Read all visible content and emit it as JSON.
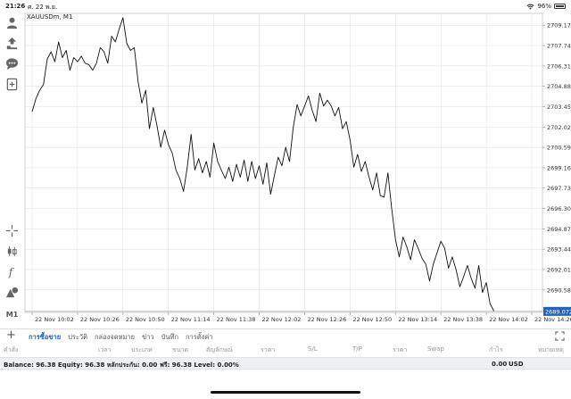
{
  "status_bar": {
    "time": "21:26",
    "date": "ศ. 22 พ.ย.",
    "battery": "96%"
  },
  "toolbar": {
    "tools": [
      "person-icon",
      "trade-icon",
      "chat-icon",
      "add-chart-icon",
      "crosshair-icon",
      "candlestick-icon",
      "indicator-icon",
      "objects-icon",
      "timeframe-label"
    ],
    "timeframe": "M1"
  },
  "chart": {
    "symbol": "XAUUSDm, M1",
    "line_color": "#111111",
    "grid_color": "#dddddd",
    "current_price": "2689.072",
    "current_price_bg": "#2563b8",
    "price_labels": [
      "2709.170",
      "2707.740",
      "2706.310",
      "2704.880",
      "2703.450",
      "2702.020",
      "2700.590",
      "2699.160",
      "2697.730",
      "2696.300",
      "2694.870",
      "2693.440",
      "2692.010",
      "2690.580"
    ],
    "time_labels": [
      "22 Nov 10:02",
      "22 Nov 10:26",
      "22 Nov 10:50",
      "22 Nov 11:14",
      "22 Nov 11:38",
      "22 Nov 12:02",
      "22 Nov 12:26",
      "22 Nov 12:50",
      "22 Nov 13:14",
      "22 Nov 13:38",
      "22 Nov 14:02",
      "22 Nov 14:26"
    ]
  },
  "chart_data": {
    "type": "line",
    "title": "XAUUSDm, M1",
    "xlabel": "",
    "ylabel": "",
    "ylim": [
      2689.0,
      2710.0
    ],
    "x": [
      "10:02",
      "10:04",
      "10:06",
      "10:08",
      "10:10",
      "10:12",
      "10:14",
      "10:16",
      "10:18",
      "10:20",
      "10:22",
      "10:24",
      "10:26",
      "10:28",
      "10:30",
      "10:32",
      "10:34",
      "10:36",
      "10:38",
      "10:40",
      "10:42",
      "10:44",
      "10:46",
      "10:48",
      "10:50",
      "10:52",
      "10:54",
      "10:56",
      "10:58",
      "11:00",
      "11:02",
      "11:04",
      "11:06",
      "11:08",
      "11:10",
      "11:12",
      "11:14",
      "11:16",
      "11:18",
      "11:20",
      "11:22",
      "11:24",
      "11:26",
      "11:28",
      "11:30",
      "11:32",
      "11:34",
      "11:36",
      "11:38",
      "11:40",
      "11:42",
      "11:44",
      "11:46",
      "11:48",
      "11:50",
      "11:52",
      "11:54",
      "11:56",
      "11:58",
      "12:00",
      "12:02",
      "12:04",
      "12:06",
      "12:08",
      "12:10",
      "12:12",
      "12:14",
      "12:16",
      "12:18",
      "12:20",
      "12:22",
      "12:24",
      "12:26",
      "12:28",
      "12:30",
      "12:32",
      "12:34",
      "12:36",
      "12:38",
      "12:40",
      "12:42",
      "12:44",
      "12:46",
      "12:48",
      "12:50",
      "12:52",
      "12:54",
      "12:56",
      "12:58",
      "13:00",
      "13:02",
      "13:04",
      "13:06",
      "13:08",
      "13:10",
      "13:12",
      "13:14",
      "13:16",
      "13:18",
      "13:20",
      "13:22",
      "13:24",
      "13:26",
      "13:28",
      "13:30",
      "13:32",
      "13:34",
      "13:36",
      "13:38",
      "13:40",
      "13:42",
      "13:44",
      "13:46",
      "13:48",
      "13:50",
      "13:52",
      "13:54",
      "13:56",
      "13:58",
      "14:00",
      "14:02",
      "14:04",
      "14:06"
    ],
    "series": [
      {
        "values": [
          2703.1,
          2704.0,
          2704.6,
          2705.0,
          2706.8,
          2707.3,
          2706.6,
          2708.0,
          2706.9,
          2707.4,
          2706.0,
          2706.9,
          2706.6,
          2707.0,
          2706.5,
          2706.4,
          2706.0,
          2706.5,
          2707.6,
          2707.3,
          2706.5,
          2708.4,
          2708.0,
          2708.9,
          2709.7,
          2707.9,
          2707.4,
          2707.6,
          2705.2,
          2703.7,
          2704.6,
          2701.9,
          2703.4,
          2702.1,
          2700.6,
          2701.8,
          2700.8,
          2700.2,
          2699.0,
          2698.4,
          2697.5,
          2699.2,
          2701.5,
          2699.0,
          2699.8,
          2698.8,
          2699.6,
          2698.5,
          2700.9,
          2699.6,
          2699.0,
          2698.4,
          2699.2,
          2698.2,
          2699.4,
          2698.5,
          2699.7,
          2698.2,
          2699.6,
          2698.4,
          2699.3,
          2698.0,
          2699.5,
          2697.3,
          2698.6,
          2699.9,
          2699.3,
          2700.6,
          2699.6,
          2702.0,
          2703.6,
          2702.8,
          2703.5,
          2704.2,
          2703.2,
          2702.4,
          2704.4,
          2703.5,
          2703.9,
          2703.5,
          2702.8,
          2703.4,
          2701.9,
          2702.4,
          2701.1,
          2699.2,
          2700.1,
          2698.9,
          2699.6,
          2698.5,
          2697.6,
          2698.8,
          2697.2,
          2697.1,
          2698.8,
          2696.3,
          2694.1,
          2692.9,
          2694.3,
          2693.6,
          2692.7,
          2694.1,
          2693.5,
          2692.8,
          2692.4,
          2691.2,
          2692.4,
          2693.2,
          2694.0,
          2693.5,
          2692.1,
          2692.9,
          2692.0,
          2690.8,
          2691.5,
          2692.3,
          2691.4,
          2690.7,
          2692.3,
          2690.4,
          2691.1,
          2689.6,
          2689.1
        ]
      }
    ]
  },
  "tabs": {
    "add_label": "+",
    "items": [
      {
        "label": "การซื้อขาย",
        "active": true
      },
      {
        "label": "ประวัติ",
        "active": false
      },
      {
        "label": "กล่องจดหมาย",
        "active": false
      },
      {
        "label": "ข่าว",
        "active": false
      },
      {
        "label": "บันทึก",
        "active": false
      },
      {
        "label": "การตั้งค่า",
        "active": false
      }
    ]
  },
  "columns": [
    "คำสั่ง",
    "เวลา",
    "ประเภท",
    "ขนาด",
    "สัญลักษณ์",
    "ราคา",
    "S/L",
    "T/P",
    "ราคา",
    "Swap",
    "กำไร",
    "หมายเหตุ"
  ],
  "account": {
    "summary": "Balance: 96.38 Equity: 96.38 หลักประกัน: 0.00 ฟรี: 96.38 Level: 0.00%",
    "profit": "0.00",
    "currency": "USD"
  }
}
